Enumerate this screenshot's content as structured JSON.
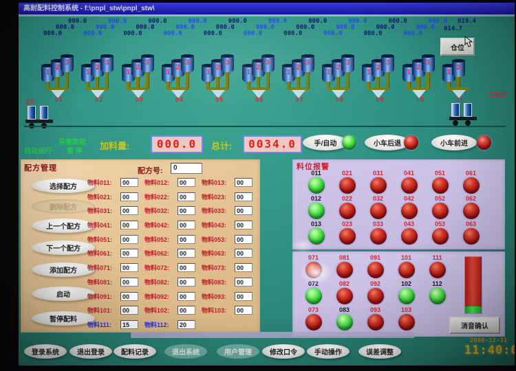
{
  "window": {
    "title": "高耐配料控制系统 - f:\\pnpl_stw\\pnpl_stw\\"
  },
  "scale_row": {
    "stations": [
      {
        "tone": "dark",
        "values": [
          "000.0",
          "000.0",
          "000.0"
        ]
      },
      {
        "tone": "bright",
        "values": [
          "000.0",
          "000.0",
          "000.0"
        ]
      },
      {
        "tone": "dark",
        "values": [
          "000.0",
          "000.0",
          "000.0"
        ]
      },
      {
        "tone": "bright",
        "values": [
          "000.0",
          "000.0",
          "000.0"
        ]
      },
      {
        "tone": "dark",
        "values": [
          "000.0",
          "000.0",
          "000.0"
        ]
      },
      {
        "tone": "bright",
        "values": [
          "000.0",
          "000.0",
          "000.0"
        ]
      },
      {
        "tone": "dark",
        "values": [
          "000.0",
          "000.0",
          "000.0"
        ]
      },
      {
        "tone": "bright",
        "values": [
          "000.0",
          "000.0",
          "000.0"
        ]
      },
      {
        "tone": "dark",
        "values": [
          "000.0",
          "000.0",
          "000.0"
        ]
      },
      {
        "tone": "bright",
        "values": [
          "000.0",
          "000.0",
          "000.0"
        ]
      },
      {
        "tone": "dark",
        "values": [
          "014.7",
          "019.4"
        ]
      }
    ]
  },
  "hopper_row": {
    "start_label": "ST",
    "end_label": "END",
    "bin_view_button": "仓位",
    "stations": [
      {
        "label": "01",
        "bins": [
          "1",
          "2",
          "3"
        ]
      },
      {
        "label": "02",
        "bins": [
          "1",
          "2",
          "3"
        ]
      },
      {
        "label": "03",
        "bins": [
          "1",
          "2",
          "3"
        ]
      },
      {
        "label": "04",
        "bins": [
          "1",
          "2",
          "3"
        ]
      },
      {
        "label": "05",
        "bins": [
          "1",
          "2",
          "3"
        ]
      },
      {
        "label": "06",
        "bins": [
          "1",
          "2",
          "3"
        ]
      },
      {
        "label": "07",
        "bins": [
          "1",
          "2",
          "3"
        ]
      },
      {
        "label": "08",
        "bins": [
          "1",
          "2",
          "3"
        ]
      },
      {
        "label": "09",
        "bins": [
          "1",
          "2",
          "3"
        ]
      },
      {
        "label": "10",
        "bins": [
          "1",
          "2",
          "3"
        ]
      },
      {
        "label": "11",
        "bins": [
          "1",
          "2"
        ]
      }
    ]
  },
  "status_bar": {
    "collect_text": "采集数据",
    "run_text": "自动运行",
    "pause_text": "暂 停",
    "feed_label": "加料量:",
    "feed_value": "000.0",
    "total_label": "总计:",
    "total_value": "0034.0",
    "controls": [
      {
        "label": "手/自动",
        "state": "green"
      },
      {
        "label": "小车后退",
        "state": "red"
      },
      {
        "label": "小车前进",
        "state": "red"
      }
    ]
  },
  "recipe_panel": {
    "title": "配方管理",
    "recipe_no_label": "配方号:",
    "recipe_no_value": "0",
    "buttons": [
      {
        "label": "选择配方",
        "enabled": true
      },
      {
        "label": "删除配方",
        "enabled": false
      },
      {
        "label": "上一个配方",
        "enabled": true
      },
      {
        "label": "下一个配方",
        "enabled": true
      },
      {
        "label": "添加配方",
        "enabled": true
      },
      {
        "label": "启动",
        "enabled": true
      },
      {
        "label": "暂停配料",
        "enabled": true
      }
    ],
    "rows": [
      {
        "cells": [
          {
            "label": "物料011:",
            "value": "00"
          },
          {
            "label": "物料012:",
            "value": "00"
          },
          {
            "label": "物料013:",
            "value": "00"
          }
        ]
      },
      {
        "cells": [
          {
            "label": "物料021:",
            "value": "00"
          },
          {
            "label": "物料022:",
            "value": "00"
          },
          {
            "label": "物料023:",
            "value": "00"
          }
        ]
      },
      {
        "cells": [
          {
            "label": "物料031:",
            "value": "00"
          },
          {
            "label": "物料032:",
            "value": "00"
          },
          {
            "label": "物料033:",
            "value": "00"
          }
        ]
      },
      {
        "cells": [
          {
            "label": "物料041:",
            "value": "00"
          },
          {
            "label": "物料042:",
            "value": "00"
          },
          {
            "label": "物料043:",
            "value": "00"
          }
        ]
      },
      {
        "cells": [
          {
            "label": "物料051:",
            "value": "00"
          },
          {
            "label": "物料052:",
            "value": "00"
          },
          {
            "label": "物料053:",
            "value": "00"
          }
        ]
      },
      {
        "cells": [
          {
            "label": "物料061:",
            "value": "00"
          },
          {
            "label": "物料062:",
            "value": "00"
          },
          {
            "label": "物料063:",
            "value": "00"
          }
        ]
      },
      {
        "cells": [
          {
            "label": "物料071:",
            "value": "00"
          },
          {
            "label": "物料072:",
            "value": "00"
          },
          {
            "label": "物料073:",
            "value": "00"
          }
        ]
      },
      {
        "cells": [
          {
            "label": "物料081:",
            "value": "00"
          },
          {
            "label": "物料082:",
            "value": "00"
          },
          {
            "label": "物料083:",
            "value": "00"
          }
        ]
      },
      {
        "cells": [
          {
            "label": "物料091:",
            "value": "00"
          },
          {
            "label": "物料092:",
            "value": "00"
          },
          {
            "label": "物料093:",
            "value": "00"
          }
        ]
      },
      {
        "cells": [
          {
            "label": "物料101:",
            "value": "00"
          },
          {
            "label": "物料102:",
            "value": "00"
          },
          {
            "label": "物料103:",
            "value": "00"
          }
        ]
      },
      {
        "cells": [
          {
            "label": "物料111:",
            "value": "15",
            "accent": "blue"
          },
          {
            "label": "物料112:",
            "value": "20",
            "accent": "blue"
          }
        ]
      }
    ]
  },
  "alarm_panel": {
    "title": "料位报警",
    "upper_rows": [
      [
        {
          "id": "011",
          "state": "green"
        },
        {
          "id": "021",
          "state": "red"
        },
        {
          "id": "031",
          "state": "red"
        },
        {
          "id": "041",
          "state": "red"
        },
        {
          "id": "051",
          "state": "red"
        },
        {
          "id": "061",
          "state": "red"
        }
      ],
      [
        {
          "id": "012",
          "state": "green"
        },
        {
          "id": "022",
          "state": "red"
        },
        {
          "id": "032",
          "state": "red"
        },
        {
          "id": "042",
          "state": "red"
        },
        {
          "id": "052",
          "state": "red"
        },
        {
          "id": "062",
          "state": "red"
        }
      ],
      [
        {
          "id": "013",
          "state": "green"
        },
        {
          "id": "023",
          "state": "red"
        },
        {
          "id": "033",
          "state": "red"
        },
        {
          "id": "043",
          "state": "red"
        },
        {
          "id": "053",
          "state": "red"
        },
        {
          "id": "063",
          "state": "red"
        }
      ]
    ],
    "lower_rows": [
      [
        {
          "id": "071",
          "state": "red"
        },
        {
          "id": "081",
          "state": "red"
        },
        {
          "id": "091",
          "state": "red"
        },
        {
          "id": "101",
          "state": "red"
        },
        {
          "id": "111",
          "state": "red"
        }
      ],
      [
        {
          "id": "072",
          "state": "green"
        },
        {
          "id": "082",
          "state": "red"
        },
        {
          "id": "092",
          "state": "red"
        },
        {
          "id": "102",
          "state": "green"
        },
        {
          "id": "112",
          "state": "green"
        }
      ],
      [
        {
          "id": "073",
          "state": "red"
        },
        {
          "id": "083",
          "state": "green"
        },
        {
          "id": "093",
          "state": "red"
        },
        {
          "id": "103",
          "state": "red"
        }
      ]
    ],
    "gauge": {
      "red_pct": 88,
      "green_pct": 12
    },
    "mute_button": "消音确认"
  },
  "bottom_bar": {
    "buttons": [
      {
        "label": "登录系统",
        "enabled": true
      },
      {
        "label": "退出登录",
        "enabled": true
      },
      {
        "label": "配料记录",
        "enabled": true
      },
      {
        "label": "退出系统",
        "enabled": false
      },
      {
        "label": "用户管理",
        "enabled": false
      },
      {
        "label": "修改口令",
        "enabled": true
      },
      {
        "label": "手动操作",
        "enabled": true
      },
      {
        "label": "误差调整",
        "enabled": true
      }
    ],
    "date": "2006-12-31",
    "time": "11:40:06"
  },
  "palette": {
    "teal_bg": "#2e9082",
    "value_dark": "#141a6e",
    "value_bright": "#2848f0",
    "alarm_red": "#a81212",
    "alarm_green": "#2cc234",
    "panel_tan": "#e2bf8e",
    "panel_lavender": "#cabfe2",
    "accent_yellow": "#c6c61e",
    "display_red": "#e21f1f",
    "clock_amber": "#dca828"
  }
}
